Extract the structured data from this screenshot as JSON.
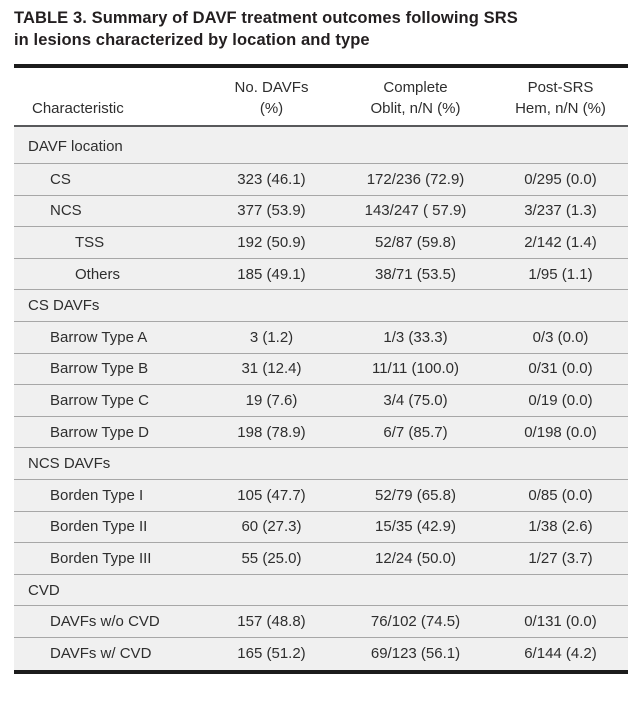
{
  "title": {
    "line1": "TABLE 3. Summary of DAVF treatment outcomes following SRS",
    "line2": "in lesions characterized by location and type",
    "full": "TABLE 3. Summary of DAVF treatment outcomes following SRS in lesions characterized by location and type"
  },
  "colors": {
    "page_bg": "#ffffff",
    "row_bg": "#f0f0f0",
    "thick_rule": "#1c1c1c",
    "header_rule": "#58595b",
    "row_separator": "#a7a7a7",
    "text": "#2e2e2e",
    "title_text": "#231f20"
  },
  "table": {
    "columns": [
      {
        "line1": "",
        "line2": "Characteristic"
      },
      {
        "line1": "No. DAVFs",
        "line2": "(%)"
      },
      {
        "line1": "Complete",
        "line2": "Oblit, n/N (%)"
      },
      {
        "line1": "Post-SRS",
        "line2": "Hem, n/N (%)"
      }
    ],
    "rows": [
      {
        "type": "section",
        "indent": 0,
        "label": "DAVF location",
        "values": [
          "",
          "",
          ""
        ]
      },
      {
        "type": "data",
        "indent": 1,
        "label": "CS",
        "values": [
          "323 (46.1)",
          "172/236 (72.9)",
          "0/295 (0.0)"
        ]
      },
      {
        "type": "data",
        "indent": 1,
        "label": "NCS",
        "values": [
          "377 (53.9)",
          "143/247 ( 57.9)",
          "3/237 (1.3)"
        ]
      },
      {
        "type": "data",
        "indent": 2,
        "label": "TSS",
        "values": [
          "192 (50.9)",
          "52/87 (59.8)",
          "2/142 (1.4)"
        ]
      },
      {
        "type": "data",
        "indent": 2,
        "label": "Others",
        "values": [
          "185 (49.1)",
          "38/71 (53.5)",
          "1/95 (1.1)"
        ]
      },
      {
        "type": "section",
        "indent": 0,
        "label": "CS DAVFs",
        "values": [
          "",
          "",
          ""
        ]
      },
      {
        "type": "data",
        "indent": 1,
        "label": "Barrow Type A",
        "values": [
          "3 (1.2)",
          "1/3 (33.3)",
          "0/3 (0.0)"
        ]
      },
      {
        "type": "data",
        "indent": 1,
        "label": "Barrow Type B",
        "values": [
          "31 (12.4)",
          "11/11 (100.0)",
          "0/31 (0.0)"
        ]
      },
      {
        "type": "data",
        "indent": 1,
        "label": "Barrow Type C",
        "values": [
          "19 (7.6)",
          "3/4 (75.0)",
          "0/19 (0.0)"
        ]
      },
      {
        "type": "data",
        "indent": 1,
        "label": "Barrow Type D",
        "values": [
          "198 (78.9)",
          "6/7 (85.7)",
          "0/198 (0.0)"
        ]
      },
      {
        "type": "section",
        "indent": 0,
        "label": "NCS DAVFs",
        "values": [
          "",
          "",
          ""
        ]
      },
      {
        "type": "data",
        "indent": 1,
        "label": "Borden Type I",
        "values": [
          "105 (47.7)",
          "52/79 (65.8)",
          "0/85 (0.0)"
        ]
      },
      {
        "type": "data",
        "indent": 1,
        "label": "Borden Type II",
        "values": [
          "60 (27.3)",
          "15/35 (42.9)",
          "1/38 (2.6)"
        ]
      },
      {
        "type": "data",
        "indent": 1,
        "label": "Borden Type III",
        "values": [
          "55 (25.0)",
          "12/24 (50.0)",
          "1/27 (3.7)"
        ]
      },
      {
        "type": "section",
        "indent": 0,
        "label": "CVD",
        "values": [
          "",
          "",
          ""
        ]
      },
      {
        "type": "data",
        "indent": 1,
        "label": "DAVFs w/o CVD",
        "values": [
          "157 (48.8)",
          "76/102 (74.5)",
          "0/131 (0.0)"
        ]
      },
      {
        "type": "data",
        "indent": 1,
        "label": "DAVFs w/ CVD",
        "values": [
          "165 (51.2)",
          "69/123 (56.1)",
          "6/144 (4.2)"
        ]
      }
    ]
  }
}
